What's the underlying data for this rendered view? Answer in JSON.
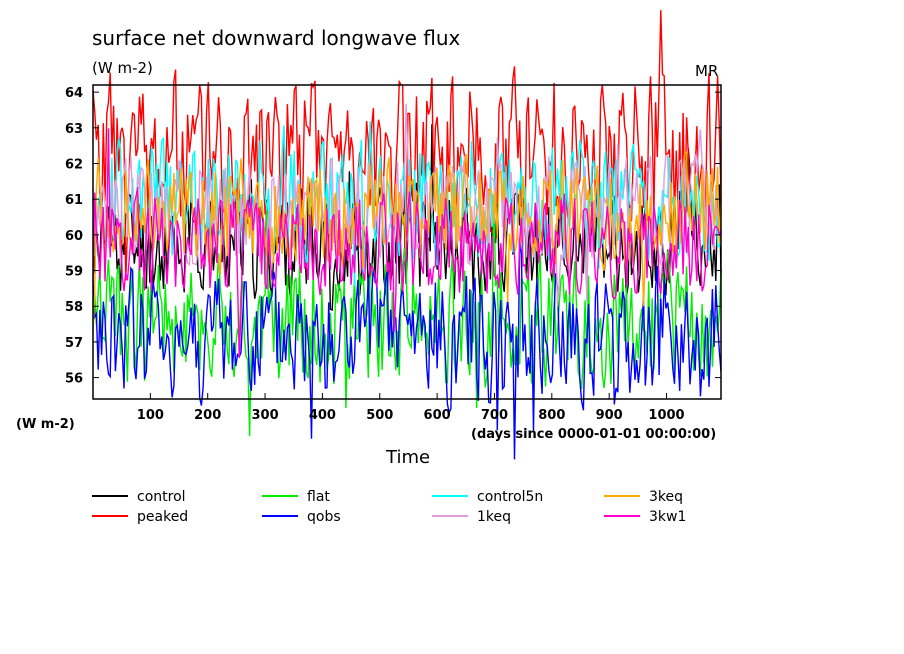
{
  "chart_data": {
    "type": "line",
    "title": "surface net downward longwave flux",
    "subtitle": "(W m-2)",
    "corner_label": "MR",
    "ylabel_side": "(W m-2)",
    "xlabel": "Time",
    "xunits_note": "(days since 0000-01-01 00:00:00)",
    "xlim": [
      0,
      1095
    ],
    "ylim": [
      55.4,
      64.2
    ],
    "xticks": [
      100,
      200,
      300,
      400,
      500,
      600,
      700,
      800,
      900,
      1000
    ],
    "xtick_labels": [
      "100",
      "200",
      "300",
      "400",
      "500",
      "600",
      "700",
      "800",
      "900",
      "1000"
    ],
    "yticks": [
      56,
      57,
      58,
      59,
      60,
      61,
      62,
      63,
      64
    ],
    "ytick_labels": [
      "56",
      "57",
      "58",
      "59",
      "60",
      "61",
      "62",
      "63",
      "64"
    ],
    "legend_position": "bottom",
    "series": [
      {
        "name": "control",
        "color": "#000000",
        "mean": 59.8,
        "amp": 1.5,
        "seed": 11
      },
      {
        "name": "peaked",
        "color": "#ff0000",
        "mean": 62.3,
        "amp": 2.0,
        "seed": 23
      },
      {
        "name": "flat",
        "color": "#00ee00",
        "mean": 57.6,
        "amp": 1.7,
        "seed": 37
      },
      {
        "name": "qobs",
        "color": "#0000ff",
        "mean": 57.1,
        "amp": 1.7,
        "seed": 41
      },
      {
        "name": "control5n",
        "color": "#00ffff",
        "mean": 60.9,
        "amp": 1.5,
        "seed": 53
      },
      {
        "name": "1keq",
        "color": "#dda0dd",
        "mean": 60.7,
        "amp": 1.4,
        "seed": 67
      },
      {
        "name": "3keq",
        "color": "#ffaa00",
        "mean": 60.6,
        "amp": 1.4,
        "seed": 71
      },
      {
        "name": "3kw1",
        "color": "#ff00cc",
        "mean": 59.7,
        "amp": 1.3,
        "seed": 89
      }
    ]
  }
}
